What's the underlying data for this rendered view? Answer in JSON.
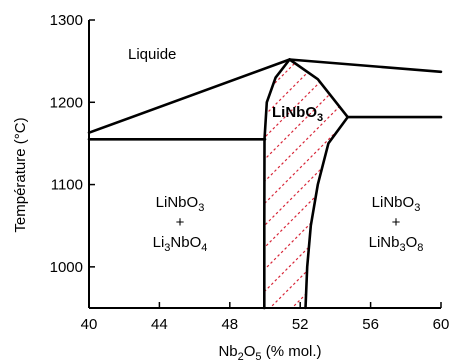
{
  "chart_data": {
    "type": "phase-diagram",
    "xlabel": {
      "base": "Nb",
      "sub1": "2",
      "mid": "O",
      "sub2": "5",
      "tail": " (% mol.)"
    },
    "ylabel": "Température (°C)",
    "xlim": [
      40,
      60
    ],
    "ylim": [
      950,
      1300
    ],
    "x_ticks": [
      "40",
      "44",
      "48",
      "52",
      "56",
      "60"
    ],
    "x_tick_values": [
      40,
      44,
      48,
      52,
      56,
      60
    ],
    "y_ticks": [
      "1300",
      "1200",
      "1100",
      "1000"
    ],
    "y_tick_values": [
      1300,
      1200,
      1100,
      1000
    ],
    "boundaries": {
      "liquidus_left": [
        [
          40,
          1163
        ],
        [
          51.4,
          1252
        ]
      ],
      "liquidus_right": [
        [
          51.4,
          1252
        ],
        [
          60,
          1237
        ]
      ],
      "eutectic_left": [
        [
          40,
          1155
        ],
        [
          50.0,
          1155
        ]
      ],
      "eutectic_right": [
        [
          54.7,
          1182
        ],
        [
          60,
          1182
        ]
      ],
      "solidus_left": [
        [
          51.4,
          1252
        ],
        [
          50.6,
          1230
        ],
        [
          50.1,
          1200
        ],
        [
          49.97,
          1155
        ],
        [
          49.96,
          1050
        ],
        [
          49.96,
          950
        ]
      ],
      "solidus_right": [
        [
          51.4,
          1252
        ],
        [
          53.0,
          1228
        ],
        [
          54.7,
          1182
        ],
        [
          53.6,
          1150
        ],
        [
          53.0,
          1100
        ],
        [
          52.6,
          1050
        ],
        [
          52.4,
          1000
        ],
        [
          52.3,
          950
        ]
      ]
    },
    "regions": {
      "liquid": {
        "label": "Liquide"
      },
      "single_phase": {
        "label": "LiNbO",
        "sub": "3"
      },
      "left_two_phase": {
        "line1_base": "LiNbO",
        "line1_sub": "3",
        "plus": "+",
        "line3_base1": "Li",
        "line3_sub1": "3",
        "line3_base2": "NbO",
        "line3_sub2": "4"
      },
      "right_two_phase": {
        "line1_base": "LiNbO",
        "line1_sub": "3",
        "plus": "+",
        "line3_base1": "LiNb",
        "line3_sub1": "3",
        "line3_base2": "O",
        "line3_sub2": "8"
      }
    },
    "colors": {
      "lines": "#000000",
      "hatch": "#d8283a",
      "background": "#ffffff"
    }
  }
}
